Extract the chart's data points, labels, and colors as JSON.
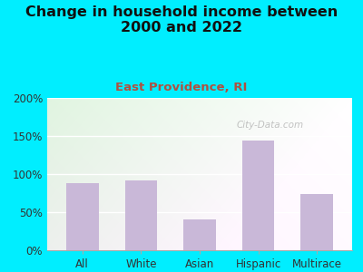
{
  "title": "Change in household income between\n2000 and 2022",
  "subtitle": "East Providence, RI",
  "categories": [
    "All",
    "White",
    "Asian",
    "Hispanic",
    "Multirace"
  ],
  "values": [
    88,
    92,
    40,
    144,
    74
  ],
  "bar_color": "#c9b8d8",
  "title_fontsize": 11.5,
  "subtitle_fontsize": 9.5,
  "subtitle_color": "#b05040",
  "title_color": "#111111",
  "background_outer": "#00eeff",
  "ylim": [
    0,
    200
  ],
  "yticks": [
    0,
    50,
    100,
    150,
    200
  ],
  "ytick_labels": [
    "0%",
    "50%",
    "100%",
    "150%",
    "200%"
  ],
  "watermark": "City-Data.com"
}
